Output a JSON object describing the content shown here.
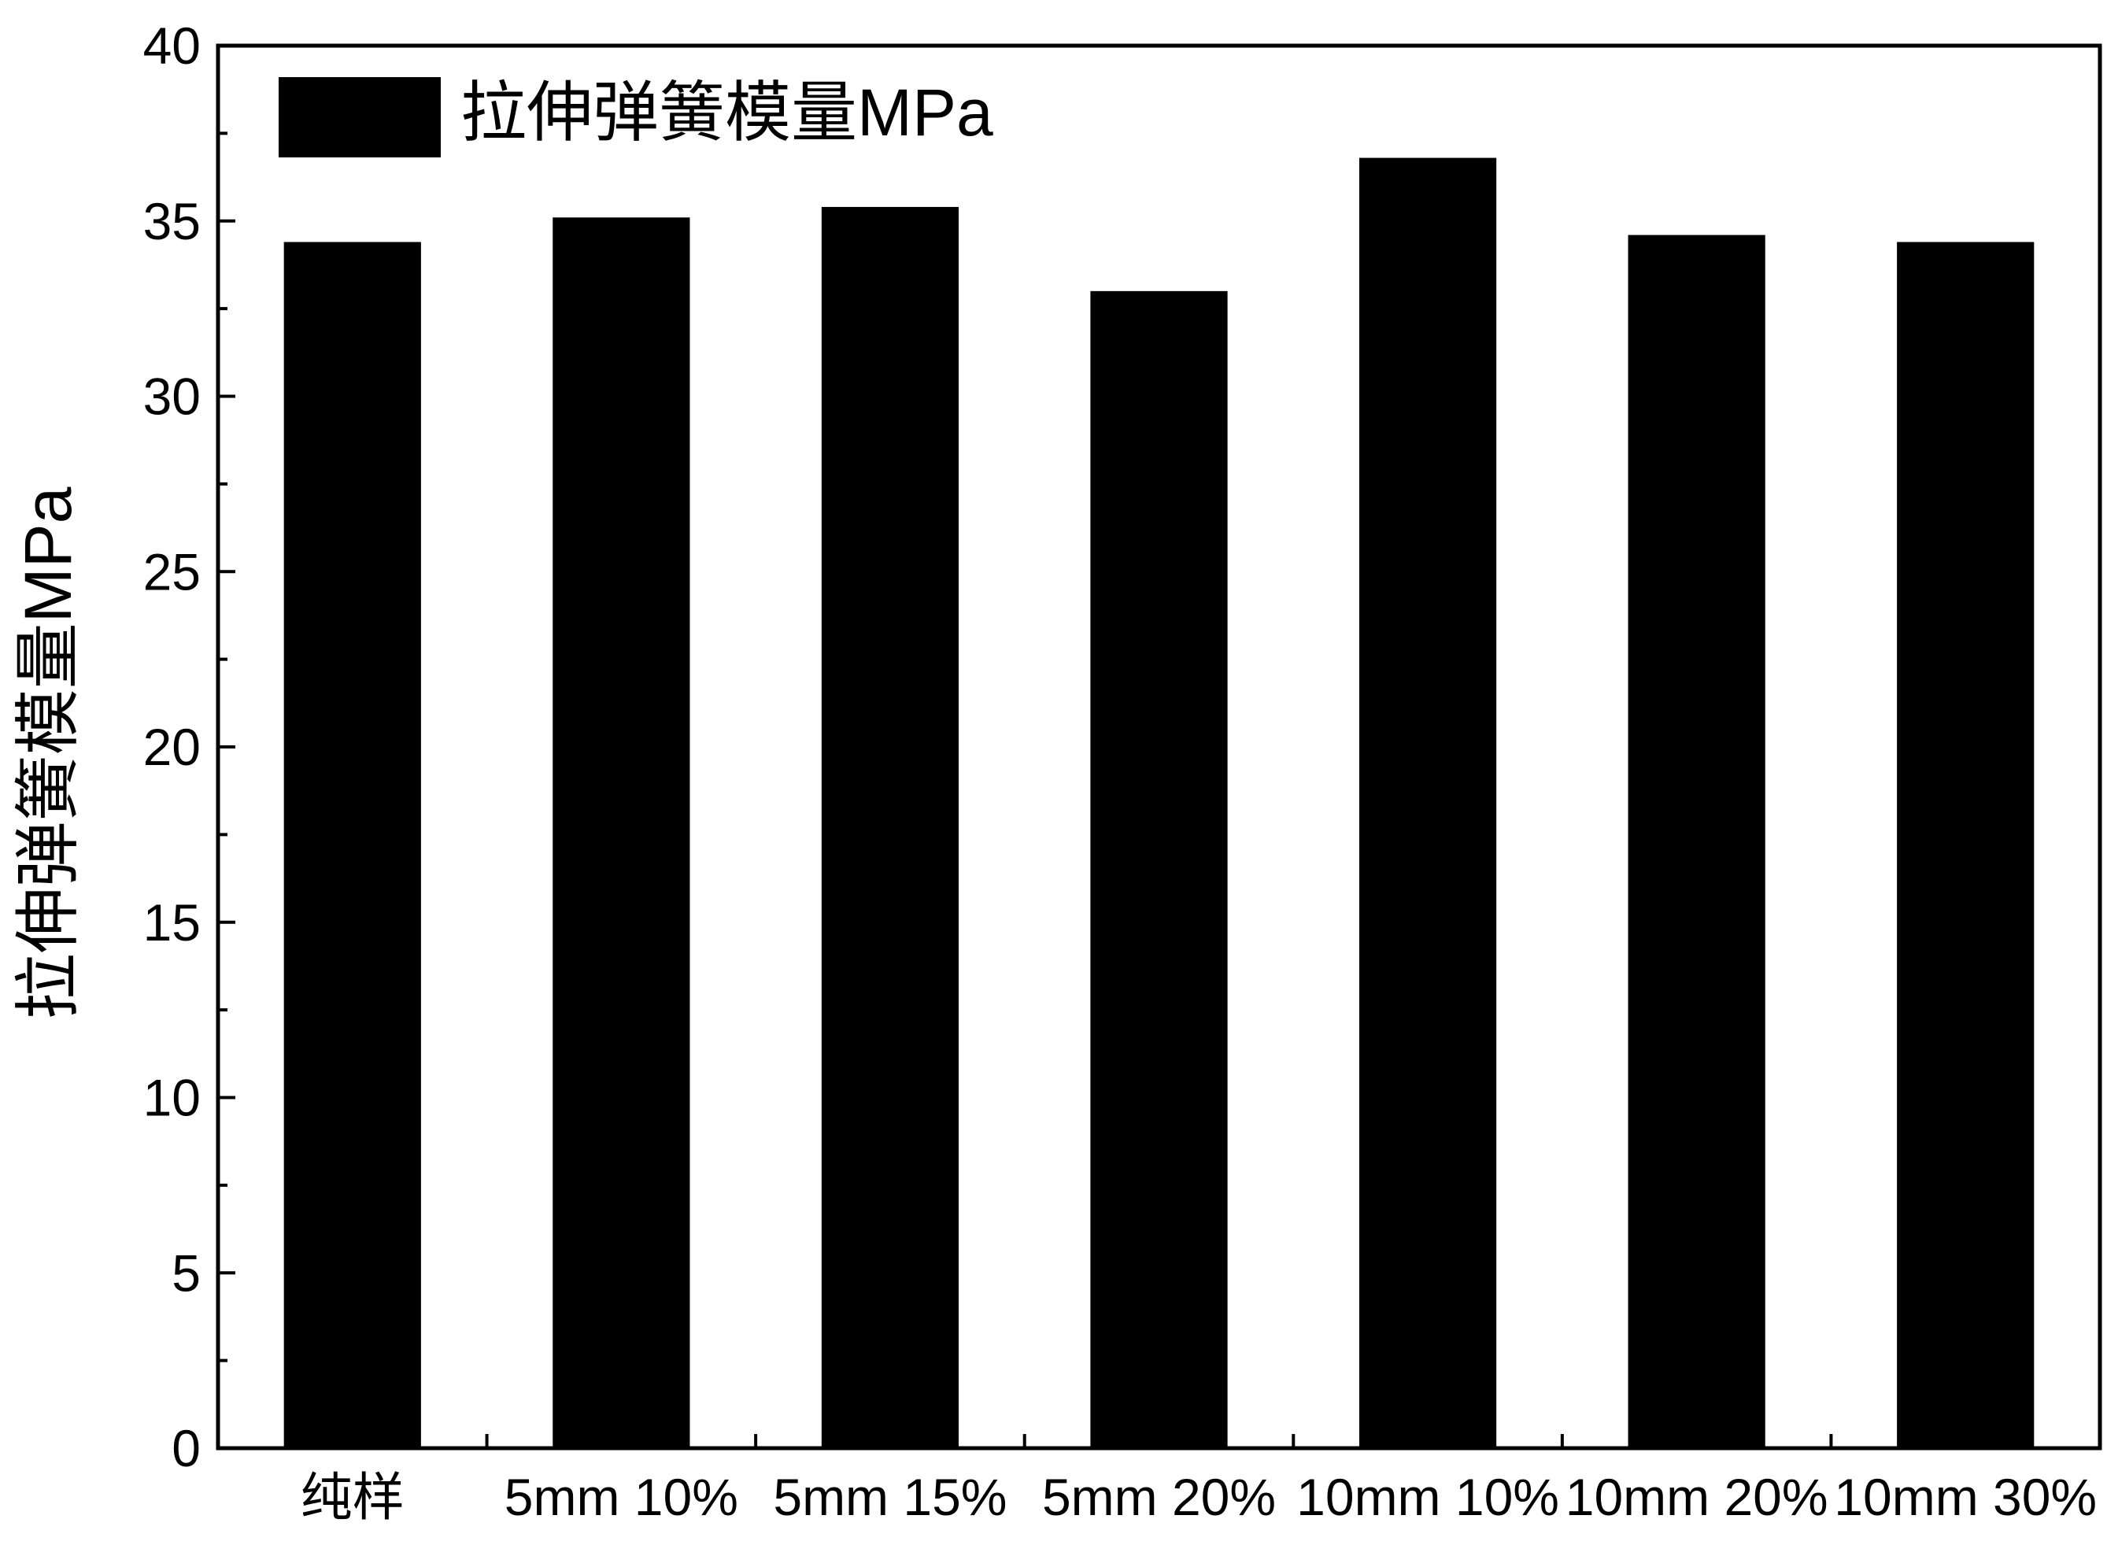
{
  "chart_data": {
    "type": "bar",
    "categories": [
      "纯样",
      "5mm 10%",
      "5mm 15%",
      "5mm 20%",
      "10mm 10%",
      "10mm 20%",
      "10mm 30%"
    ],
    "series": [
      {
        "name": "拉伸弹簧模量MPa",
        "values": [
          34.4,
          35.1,
          35.4,
          33.0,
          36.8,
          34.6,
          34.4
        ]
      }
    ],
    "title": "",
    "xlabel": "",
    "ylabel": "拉伸弹簧模量MPa",
    "ylim": [
      0,
      40
    ],
    "yticks": [
      0,
      5,
      10,
      15,
      20,
      25,
      30,
      35,
      40
    ],
    "grid": false,
    "legend_position": "top-left",
    "colors": {
      "bar": "#000000",
      "axis": "#000000",
      "background": "#ffffff"
    }
  }
}
